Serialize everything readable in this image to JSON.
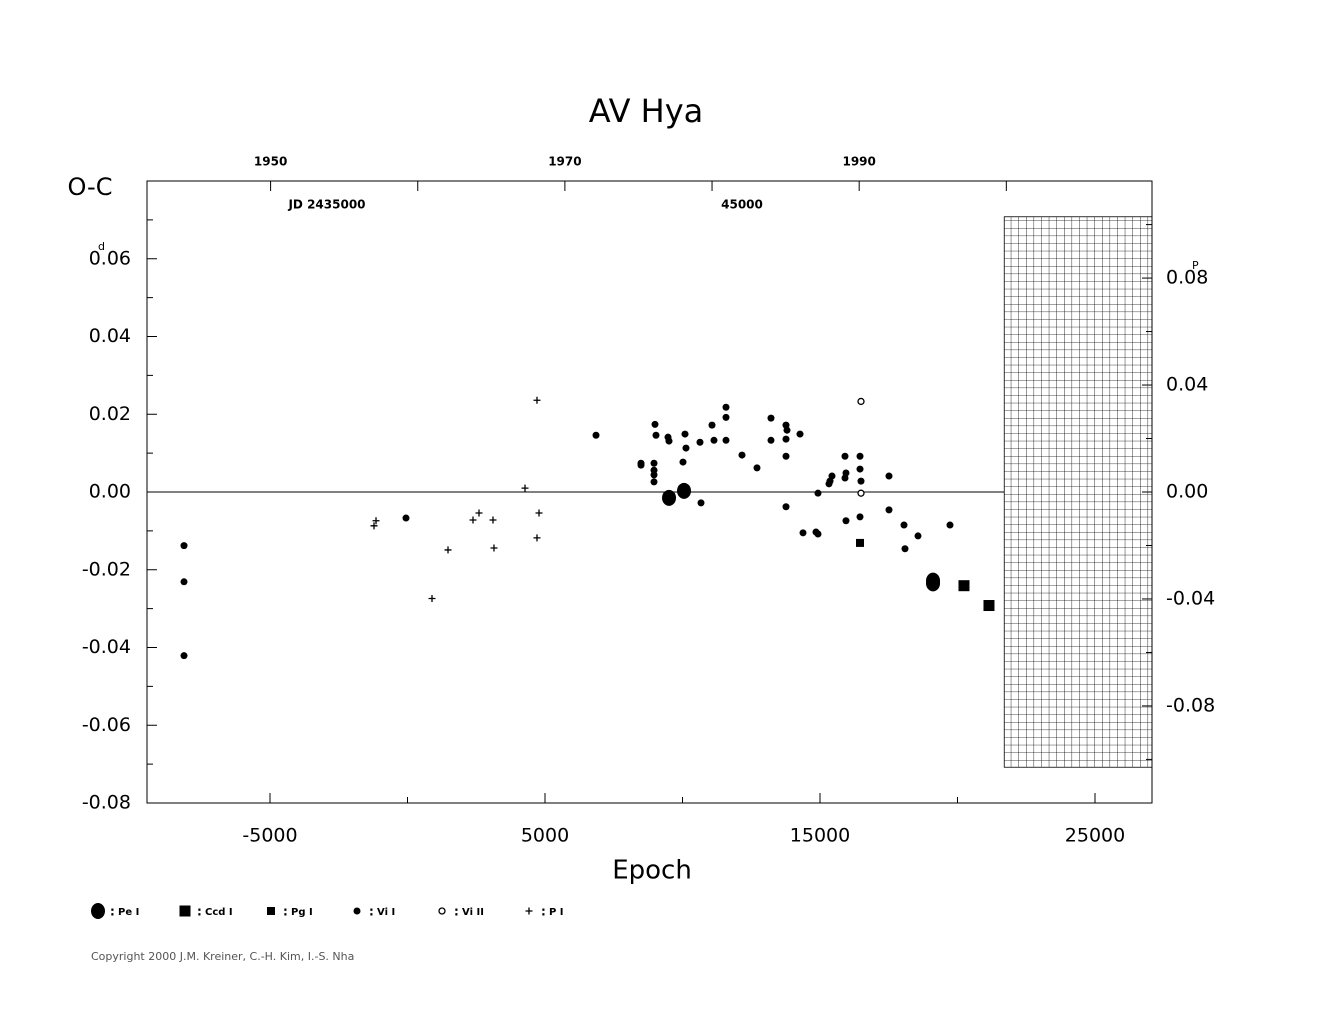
{
  "chart_data": {
    "type": "scatter",
    "title": "AV  Hya",
    "y_label": "O-C",
    "x_label": "Epoch",
    "y_unit": "d",
    "y2_unit": "P",
    "annotations": [
      "JD 2435000",
      "45000"
    ],
    "copyright": "Copyright 2000 J.M. Kreiner, C.-H. Kim, I.-S. Nha",
    "xlim": [
      -9473,
      27073
    ],
    "xticks": [
      -5000,
      5000,
      15000,
      25000
    ],
    "xminor_ticks": [
      0,
      10000,
      20000
    ],
    "ylim": [
      -0.08,
      0.08
    ],
    "yticks": [
      -0.08,
      -0.06,
      -0.04,
      -0.02,
      {
        "value": 0,
        "label": "0.00"
      },
      0.02,
      0.04,
      0.06
    ],
    "yminor_ticks": [
      -0.07,
      -0.05,
      -0.03,
      -0.01,
      0.01,
      0.03,
      0.05,
      0.07
    ],
    "y2lim": [
      -0.1163,
      0.1163
    ],
    "y2ticks": [
      -0.08,
      -0.04,
      {
        "value": 0,
        "label": "0.00"
      },
      0.04,
      0.08
    ],
    "y2minor_ticks": [
      -0.1,
      -0.06,
      -0.02,
      0.02,
      0.06,
      0.1
    ],
    "x2lim": [
      1941.6,
      2009.9
    ],
    "x2ticks": [
      1950,
      1970,
      1990
    ],
    "x2minor_ticks": [
      1960,
      1980,
      2000
    ],
    "hatch": {
      "x0": 21700,
      "ylim": [
        -0.0708,
        0.0708
      ]
    },
    "series": [
      {
        "name": "Pe I",
        "marker": "circle-large",
        "color": "#000000",
        "x": [
          9510,
          10055,
          19110,
          19110
        ],
        "values": [
          -0.0015,
          0.0003,
          -0.0228,
          -0.0235
        ]
      },
      {
        "name": "Ccd I",
        "marker": "square-large",
        "color": "#000000",
        "x": [
          20236,
          21145
        ],
        "values": [
          -0.0241,
          -0.0292
        ]
      },
      {
        "name": "Pg I",
        "marker": "square",
        "color": "#000000",
        "x": [
          16455
        ],
        "values": [
          -0.0131
        ]
      },
      {
        "name": "Vi I",
        "marker": "circle",
        "color": "#000000",
        "x": [
          -8127,
          -8127,
          -8127,
          -55,
          6855,
          8491,
          8491,
          9000,
          9036,
          8964,
          8964,
          8964,
          8964,
          9473,
          9509,
          10018,
          10091,
          10127,
          10636,
          10673,
          11073,
          11145,
          11582,
          11582,
          11582,
          12164,
          12709,
          13218,
          13218,
          13764,
          13800,
          13764,
          13764,
          13764,
          14273,
          14382,
          14855,
          14927,
          14927,
          15327,
          15364,
          15436,
          15909,
          15909,
          15945,
          15945,
          16455,
          16455,
          16491,
          16455,
          17509,
          17509,
          18055,
          18091,
          18564,
          19727
        ],
        "values": [
          -0.0138,
          -0.0231,
          -0.0421,
          -0.0067,
          0.0146,
          0.0074,
          0.0069,
          0.0174,
          0.0146,
          0.0074,
          0.0056,
          0.0044,
          0.0026,
          0.0141,
          0.0131,
          0.0077,
          0.0149,
          0.0113,
          0.0128,
          -0.0028,
          0.0172,
          0.0133,
          0.0218,
          0.0192,
          0.0133,
          0.0095,
          0.0062,
          0.019,
          0.0133,
          0.0172,
          0.0159,
          0.0136,
          0.0092,
          -0.0038,
          0.0149,
          -0.0105,
          -0.0103,
          -0.0108,
          -0.0003,
          0.0021,
          0.0028,
          0.0041,
          0.0092,
          0.0036,
          0.0049,
          -0.0074,
          0.0092,
          0.0059,
          0.0028,
          -0.0064,
          0.0041,
          -0.0046,
          -0.0085,
          -0.0146,
          -0.0113,
          -0.0085
        ]
      },
      {
        "name": "Vi II",
        "marker": "circle-open",
        "color": "#000000",
        "x": [
          16491,
          16491
        ],
        "values": [
          0.0233,
          -0.0003
        ]
      },
      {
        "name": "P I",
        "marker": "plus",
        "color": "#000000",
        "x": [
          -1218,
          -1145,
          891,
          1473,
          2382,
          2600,
          3109,
          3145,
          4273,
          4709,
          4782,
          4709
        ],
        "values": [
          -0.0087,
          -0.0074,
          -0.0274,
          -0.0149,
          -0.0072,
          -0.0054,
          -0.0072,
          -0.0144,
          0.001,
          0.0236,
          -0.0054,
          -0.0118
        ]
      }
    ]
  }
}
